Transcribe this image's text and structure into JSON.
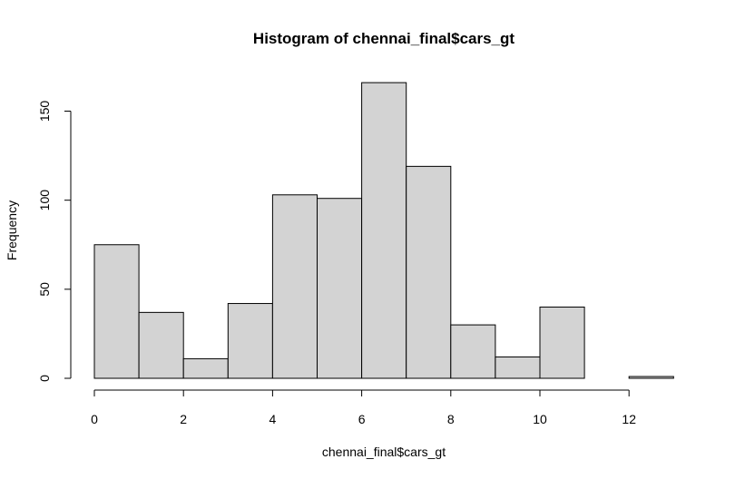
{
  "chart_data": {
    "type": "bar",
    "title": "Histogram of chennai_final$cars_gt",
    "xlabel": "chennai_final$cars_gt",
    "ylabel": "Frequency",
    "bins": [
      {
        "from": 0,
        "to": 1,
        "count": 75
      },
      {
        "from": 1,
        "to": 2,
        "count": 37
      },
      {
        "from": 2,
        "to": 3,
        "count": 11
      },
      {
        "from": 3,
        "to": 4,
        "count": 42
      },
      {
        "from": 4,
        "to": 5,
        "count": 103
      },
      {
        "from": 5,
        "to": 6,
        "count": 101
      },
      {
        "from": 6,
        "to": 7,
        "count": 166
      },
      {
        "from": 7,
        "to": 8,
        "count": 119
      },
      {
        "from": 8,
        "to": 9,
        "count": 30
      },
      {
        "from": 9,
        "to": 10,
        "count": 12
      },
      {
        "from": 10,
        "to": 11,
        "count": 40
      },
      {
        "from": 11,
        "to": 12,
        "count": 0
      },
      {
        "from": 12,
        "to": 13,
        "count": 1
      }
    ],
    "xticks": [
      0,
      2,
      4,
      6,
      8,
      10,
      12
    ],
    "yticks": [
      0,
      50,
      100,
      150
    ],
    "xlim": [
      0,
      13
    ],
    "ylim": [
      0,
      166
    ],
    "grid": false,
    "bar_fill": "#d3d3d3",
    "bar_stroke": "#000000"
  }
}
